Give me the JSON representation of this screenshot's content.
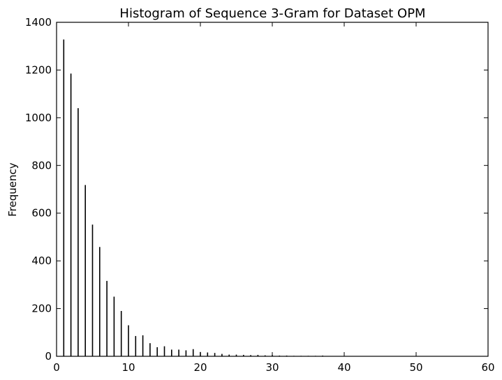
{
  "chart_data": {
    "type": "bar",
    "title": "Histogram of Sequence 3-Gram for Dataset OPM",
    "xlabel": "",
    "ylabel": "Frequency",
    "xlim": [
      0,
      60
    ],
    "ylim": [
      0,
      1400
    ],
    "xticks": [
      0,
      10,
      20,
      30,
      40,
      50,
      60
    ],
    "yticks": [
      0,
      200,
      400,
      600,
      800,
      1000,
      1200,
      1400
    ],
    "grid": false,
    "x": [
      1,
      2,
      3,
      4,
      5,
      6,
      7,
      8,
      9,
      10,
      11,
      12,
      13,
      14,
      15,
      16,
      17,
      18,
      19,
      20,
      21,
      22,
      23,
      24,
      25,
      26,
      27,
      28,
      29,
      30,
      31,
      32,
      33,
      34,
      35,
      36,
      37
    ],
    "values": [
      1328,
      1185,
      1040,
      718,
      552,
      458,
      316,
      250,
      190,
      130,
      85,
      88,
      55,
      38,
      42,
      28,
      28,
      25,
      30,
      18,
      16,
      14,
      10,
      7,
      7,
      6,
      5,
      6,
      4,
      5,
      3,
      3,
      2,
      2,
      2,
      2,
      3
    ]
  }
}
